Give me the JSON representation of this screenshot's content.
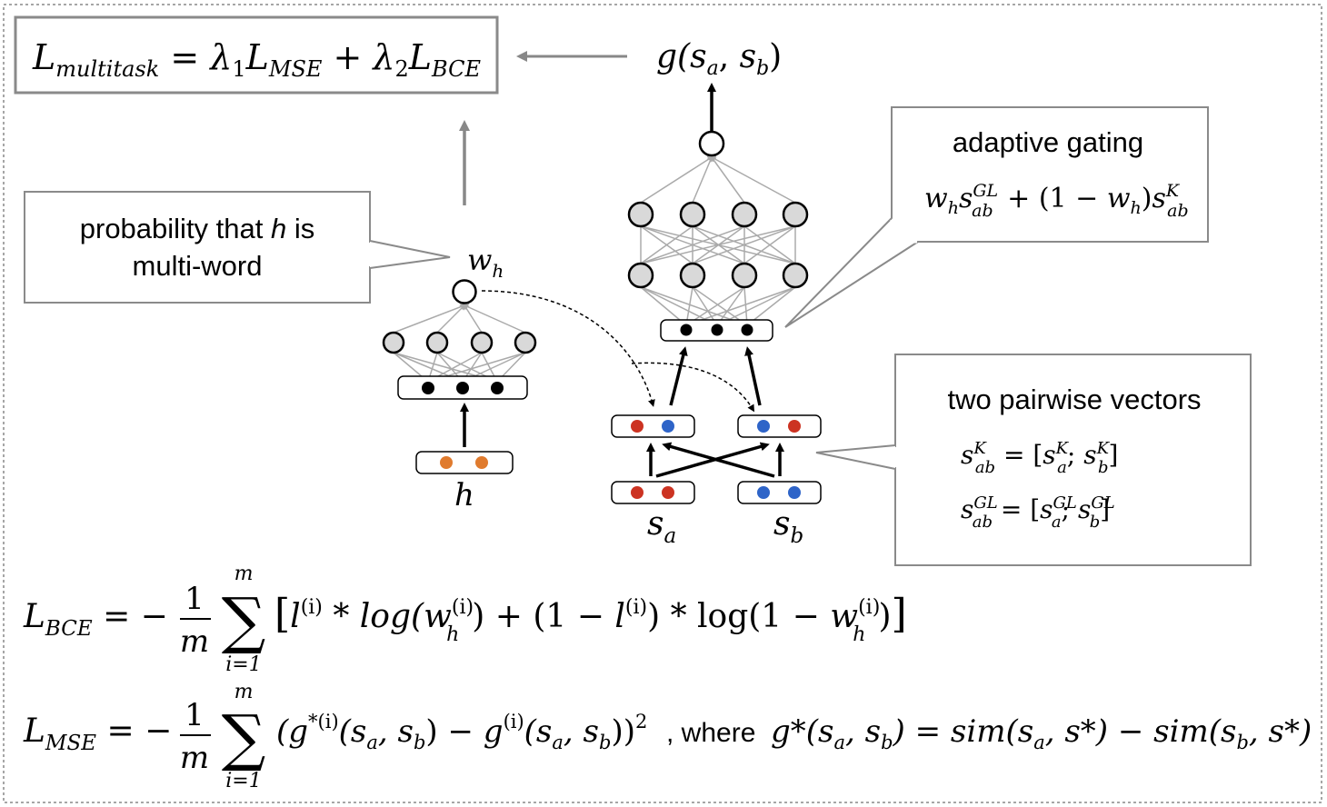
{
  "colors": {
    "hidden_node": "#d9d9d9",
    "embed_node": "#000000",
    "orange": "#e07b2e",
    "red": "#cc3322",
    "blue": "#2e64c8",
    "box_border": "#808080",
    "arrow_gray": "#888888"
  },
  "loss_box": {
    "L": "L",
    "multitask": "multitask",
    "eq": " = ",
    "lambda": "λ",
    "one": "1",
    "two": "2",
    "mse": "MSE",
    "plus": " + ",
    "bce": "BCE"
  },
  "output": {
    "g": "g(",
    "s": "s",
    "a": "a",
    "comma": ", ",
    "b": "b",
    "close": ")"
  },
  "adaptive_gating": {
    "title": "adaptive gating",
    "w": "w",
    "h": "h",
    "s": "s",
    "GL": "GL",
    "ab": "ab",
    "plus": " + (1 − ",
    "close": ")",
    "K": "K"
  },
  "prob_box": {
    "line1_pre": "probability that ",
    "h": "h",
    "line1_post": " is",
    "line2": "multi-word"
  },
  "wh_label": {
    "w": "w",
    "h": "h"
  },
  "h_label": "h",
  "sa_label": {
    "s": "s",
    "a": "a"
  },
  "sb_label": {
    "s": "s",
    "b": "b"
  },
  "pairwise": {
    "title": "two pairwise vectors",
    "s": "s",
    "K": "K",
    "ab": "ab",
    "eq": " = [",
    "a": "a",
    "semi": "; ",
    "b": "b",
    "close": "]",
    "GL": "GL"
  },
  "bce_formula": {
    "L": "L",
    "sub": "BCE",
    "eq": " = − ",
    "num": "1",
    "den": "m",
    "sigma": "∑",
    "top": "m",
    "bottom": "i=1",
    "lb": "[",
    "l": "l",
    "sup_i": "(i)",
    "star_log": " * log(",
    "w": "w",
    "h": "h",
    "mid": ") + (1 − ",
    "mid2": ") * log(1 − ",
    "end": ")",
    "rb": "]"
  },
  "mse_formula": {
    "L": "L",
    "sub": "MSE",
    "eq": " = − ",
    "num": "1",
    "den": "m",
    "sigma": "∑",
    "top": "m",
    "bottom": "i=1",
    "g_open": "(g",
    "star_i": "*(i)",
    "args": "(s",
    "a": "a",
    "comma": ", s",
    "b": "b",
    "close": ")",
    "minus": " − g",
    "sup_i": "(i)",
    "close2": "))",
    "sq": "2",
    "where": ", where ",
    "gstar": "g*(s",
    "sim1": ") = sim(s",
    "star_close": ", s*) − sim(s",
    "end": ", s*)"
  }
}
